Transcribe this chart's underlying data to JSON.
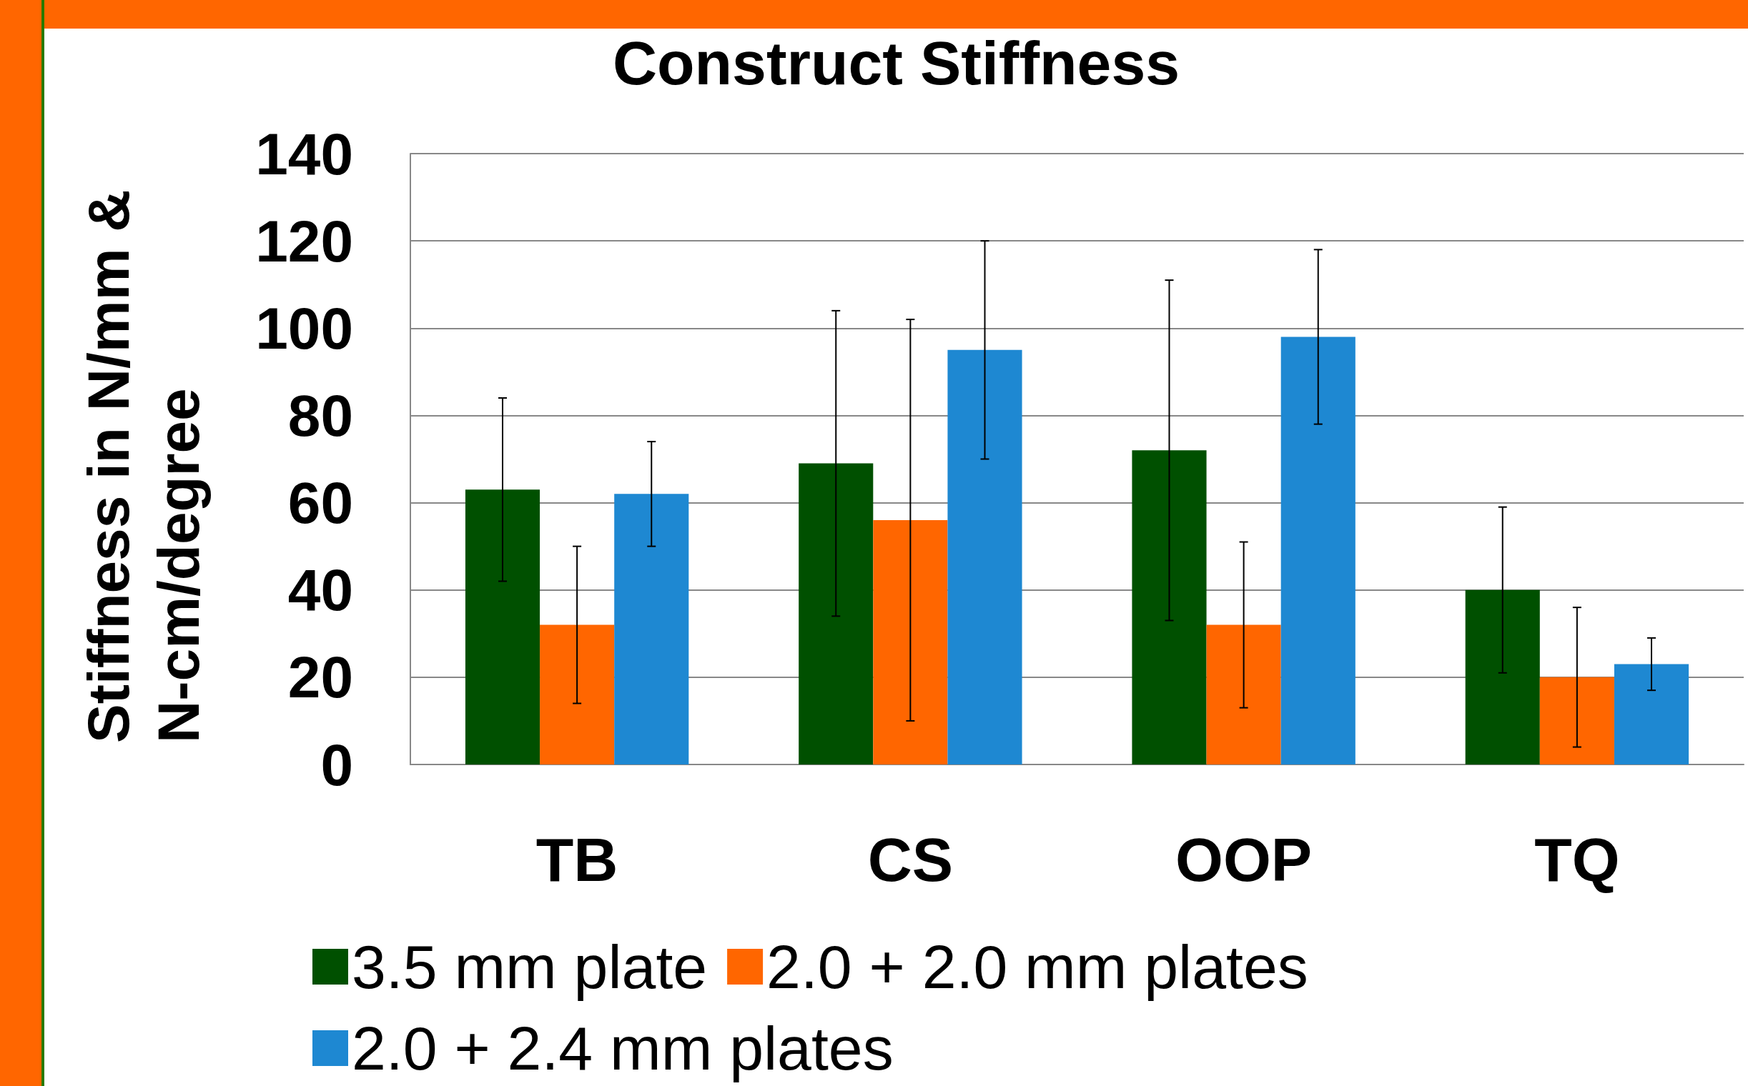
{
  "chart_data": {
    "type": "bar",
    "title": "Construct Stiffness",
    "ylabel": "Stiffness in N/mm & N-cm/degree",
    "categories": [
      "TB",
      "CS",
      "OOP",
      "TQ"
    ],
    "series": [
      {
        "name": "3.5 mm plate",
        "color": "#005000",
        "values": [
          63,
          69,
          72,
          40
        ],
        "errors": [
          21,
          35,
          39,
          19
        ]
      },
      {
        "name": "2.0 + 2.0 mm plates",
        "color": "#ff6600",
        "values": [
          32,
          56,
          32,
          20
        ],
        "errors": [
          18,
          46,
          19,
          16
        ]
      },
      {
        "name": "2.0 + 2.4 mm plates",
        "color": "#1e88d2",
        "values": [
          62,
          95,
          98,
          23
        ],
        "errors": [
          12,
          25,
          20,
          6
        ]
      }
    ],
    "ylim": [
      0,
      140
    ],
    "yticks": [
      0,
      20,
      40,
      60,
      80,
      100,
      120,
      140
    ],
    "grid": "y",
    "legend": "bottom"
  }
}
